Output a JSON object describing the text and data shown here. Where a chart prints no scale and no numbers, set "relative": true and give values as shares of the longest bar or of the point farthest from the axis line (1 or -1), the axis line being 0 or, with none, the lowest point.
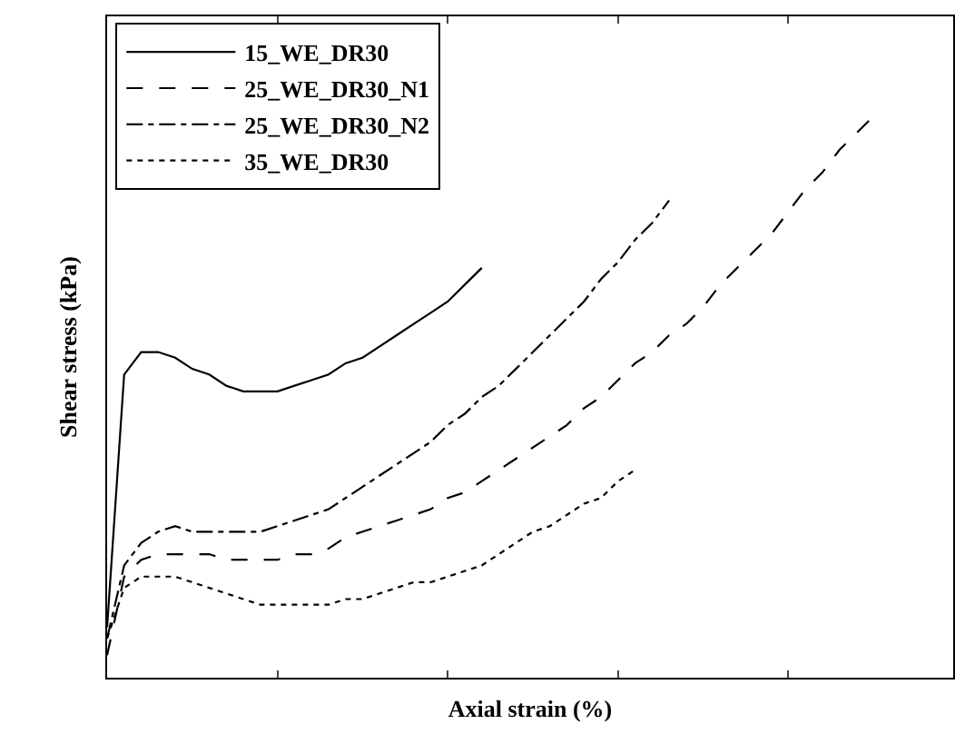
{
  "chart_data": {
    "type": "line",
    "relative": true,
    "xlabel": "Axial strain (%)",
    "ylabel": "Shear stress (kPa)",
    "legend": "top left",
    "marker": "none",
    "categories": [
      null,
      null,
      null,
      null,
      null,
      null,
      null,
      null,
      null,
      null,
      null,
      null,
      null,
      null,
      null,
      null,
      null,
      null,
      null,
      null,
      null,
      null,
      null,
      null,
      null,
      null,
      null,
      null,
      null,
      null,
      null,
      null,
      null,
      null,
      null,
      null,
      null,
      null,
      null,
      null,
      null,
      null,
      null,
      null,
      null,
      null
    ],
    "series": [
      {
        "name": "15_WE_DR30",
        "color": "#000000",
        "line_style": "solid",
        "values": [
          0.09,
          0.54,
          0.58,
          0.58,
          0.57,
          0.55,
          0.54,
          0.52,
          0.51,
          0.51,
          0.51,
          0.52,
          0.53,
          0.54,
          0.56,
          0.57,
          0.59,
          0.61,
          0.63,
          0.65,
          0.67,
          0.7,
          0.73,
          null,
          null,
          null,
          null,
          null,
          null,
          null,
          null,
          null,
          null,
          null,
          null,
          null,
          null,
          null,
          null,
          null,
          null,
          null,
          null,
          null,
          null,
          null
        ]
      },
      {
        "name": "25_WE_DR30_N1",
        "color": "#000000",
        "line_style": "dashed",
        "values": [
          0.04,
          0.18,
          0.21,
          0.22,
          0.22,
          0.22,
          0.22,
          0.21,
          0.21,
          0.21,
          0.21,
          0.22,
          0.22,
          0.23,
          0.25,
          0.26,
          0.27,
          0.28,
          0.29,
          0.3,
          0.32,
          0.33,
          0.35,
          0.37,
          0.39,
          0.41,
          0.43,
          0.45,
          0.48,
          0.5,
          0.53,
          0.56,
          0.58,
          0.61,
          0.63,
          0.66,
          0.7,
          0.73,
          0.76,
          0.79,
          0.83,
          0.87,
          0.9,
          0.94,
          0.97,
          1.0
        ]
      },
      {
        "name": "25_WE_DR30_N2",
        "color": "#000000",
        "line_style": "dashdot",
        "values": [
          0.07,
          0.2,
          0.24,
          0.26,
          0.27,
          0.26,
          0.26,
          0.26,
          0.26,
          0.26,
          0.27,
          0.28,
          0.29,
          0.3,
          0.32,
          0.34,
          0.36,
          0.38,
          0.4,
          0.42,
          0.45,
          0.47,
          0.5,
          0.52,
          0.55,
          0.58,
          0.61,
          0.64,
          0.67,
          0.71,
          0.74,
          0.78,
          0.81,
          0.85,
          null,
          null,
          null,
          null,
          null,
          null,
          null,
          null,
          null,
          null,
          null,
          null
        ]
      },
      {
        "name": "35_WE_DR30",
        "color": "#000000",
        "line_style": "dotted",
        "values": [
          0.07,
          0.16,
          0.18,
          0.18,
          0.18,
          0.17,
          0.16,
          0.15,
          0.14,
          0.13,
          0.13,
          0.13,
          0.13,
          0.13,
          0.14,
          0.14,
          0.15,
          0.16,
          0.17,
          0.17,
          0.18,
          0.19,
          0.2,
          0.22,
          0.24,
          0.26,
          0.27,
          0.29,
          0.31,
          0.32,
          0.35,
          0.37,
          null,
          null,
          null,
          null,
          null,
          null,
          null,
          null,
          null,
          null,
          null,
          null,
          null,
          null
        ]
      }
    ]
  }
}
